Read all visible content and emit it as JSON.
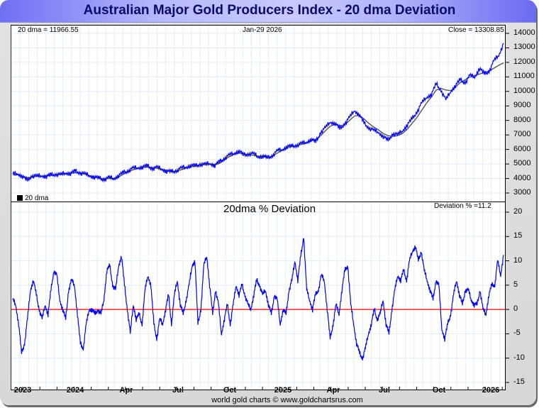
{
  "title": "Australian Major Gold Producers Index - 20 dma Deviation",
  "footer": "world gold charts © www.goldchartsrus.com",
  "colors": {
    "price": "#0000ff",
    "dma": "#555555",
    "deviation": "#0000ff",
    "zero_line": "#ff0000",
    "grid": "#e3eef7"
  },
  "top_panel": {
    "dma_readout": "20 dma = 11966.55",
    "date_readout": "Jan-29  2026",
    "close_readout": "Close = 13308.85",
    "legend_label": "20 dma"
  },
  "bottom_panel": {
    "title": "20dma  %  Deviation",
    "deviation_readout": "Deviation % =11.2"
  },
  "chart_data": [
    {
      "type": "line",
      "title": "Australian Major Gold Producers Index",
      "ylabel": "",
      "ylim": [
        3000,
        14000
      ],
      "yticks": [
        3000,
        4000,
        5000,
        6000,
        7000,
        8000,
        9000,
        10000,
        11000,
        12000,
        13000,
        14000
      ],
      "xticks": [
        "2023",
        "2024",
        "Apr",
        "Jul",
        "Oct",
        "2025",
        "Apr",
        "Jul",
        "Oct",
        "2026"
      ],
      "grid": true,
      "legend": "bottom-left",
      "series": [
        {
          "name": "Close",
          "values": [
            4300,
            4350,
            4150,
            3850,
            4200,
            4150,
            4200,
            4150,
            4250,
            4300,
            4250,
            4400,
            4350,
            4500,
            4400,
            4300,
            4200,
            4100,
            4000,
            3950,
            4050,
            4000,
            4200,
            4400,
            4550,
            4700,
            4750,
            4800,
            4850,
            4700,
            4750,
            4650,
            4500,
            4450,
            4550,
            4700,
            4800,
            4900,
            4850,
            5000,
            4950,
            5050,
            4900,
            5150,
            5400,
            5600,
            5750,
            5900,
            5600,
            5700,
            5700,
            5500,
            5550,
            5400,
            5600,
            5900,
            6000,
            6200,
            6200,
            6300,
            6400,
            6500,
            6700,
            6500,
            7200,
            7500,
            7900,
            7800,
            7400,
            7800,
            8200,
            8700,
            8400,
            7800,
            7500,
            7300,
            7200,
            6900,
            6600,
            7100,
            7000,
            7300,
            7700,
            8100,
            8600,
            9200,
            9600,
            9800,
            10500,
            10100,
            9400,
            10000,
            10400,
            10800,
            10600,
            11100,
            11000,
            11600,
            11200,
            11400,
            12100,
            12500,
            13309
          ]
        },
        {
          "name": "20 dma",
          "values": [
            4250,
            4250,
            4150,
            4050,
            4100,
            4150,
            4150,
            4180,
            4200,
            4250,
            4280,
            4300,
            4350,
            4400,
            4380,
            4300,
            4200,
            4100,
            4020,
            3980,
            4000,
            4020,
            4100,
            4300,
            4450,
            4600,
            4700,
            4750,
            4800,
            4750,
            4700,
            4650,
            4550,
            4480,
            4500,
            4600,
            4700,
            4800,
            4850,
            4950,
            4950,
            5000,
            4950,
            5050,
            5300,
            5500,
            5650,
            5750,
            5700,
            5650,
            5600,
            5550,
            5500,
            5450,
            5550,
            5750,
            5950,
            6100,
            6200,
            6250,
            6350,
            6450,
            6600,
            6700,
            6950,
            7300,
            7600,
            7750,
            7650,
            7700,
            8000,
            8300,
            8350,
            8100,
            7800,
            7550,
            7350,
            7100,
            6950,
            6900,
            6950,
            7100,
            7400,
            7800,
            8200,
            8700,
            9200,
            9600,
            10100,
            10200,
            10100,
            10050,
            10300,
            10600,
            10800,
            11000,
            11100,
            11200,
            11300,
            11400,
            11600,
            11800,
            11967
          ]
        }
      ]
    },
    {
      "type": "line",
      "title": "20dma  %  Deviation",
      "ylim": [
        -15,
        20
      ],
      "yticks": [
        -15,
        -10,
        -5,
        0,
        5,
        10,
        15,
        20
      ],
      "xticks": [
        "2023",
        "2024",
        "Apr",
        "Jul",
        "Oct",
        "2025",
        "Apr",
        "Jul",
        "Oct",
        "2026"
      ],
      "grid": true,
      "reference_line": 0,
      "series": [
        {
          "name": "Deviation %",
          "values": [
            2,
            1,
            -3,
            -9,
            -7,
            -2,
            4,
            6,
            3,
            0,
            -2,
            1,
            -1,
            4,
            8,
            7,
            2,
            0,
            -2,
            4,
            6,
            5,
            -1,
            -7,
            -8,
            -3,
            0,
            0,
            -1,
            0,
            -1,
            2,
            8,
            9,
            5,
            4,
            9,
            11,
            5,
            0,
            -5,
            1,
            -2,
            -1,
            -3,
            4,
            7,
            5,
            -3,
            -6,
            -2,
            -3,
            0,
            3,
            -3,
            3,
            6,
            1,
            -1,
            2,
            5,
            9,
            10,
            -3,
            0,
            9,
            11,
            5,
            -1,
            4,
            1,
            -5,
            -2,
            1,
            -3,
            1,
            5,
            3,
            5,
            3,
            1,
            0,
            3,
            6,
            5,
            3,
            4,
            1,
            -1,
            3,
            2,
            -3,
            0,
            -1,
            4,
            6,
            10,
            6,
            11,
            15,
            4,
            2,
            0,
            3,
            4,
            7,
            6,
            0,
            -6,
            -3,
            1,
            -1,
            4,
            8,
            9,
            1,
            -3,
            -7,
            -9,
            -10,
            -8,
            -5,
            -3,
            0,
            -2,
            -1,
            2,
            -3,
            -5,
            0,
            4,
            7,
            6,
            8,
            6,
            10,
            12,
            13,
            10,
            12,
            8,
            6,
            4,
            2,
            6,
            5,
            -4,
            -6,
            -3,
            -1,
            3,
            6,
            3,
            1,
            4,
            4,
            2,
            1,
            1,
            4,
            0,
            -1,
            3,
            5,
            5,
            10,
            7,
            11.2
          ]
        }
      ]
    }
  ]
}
